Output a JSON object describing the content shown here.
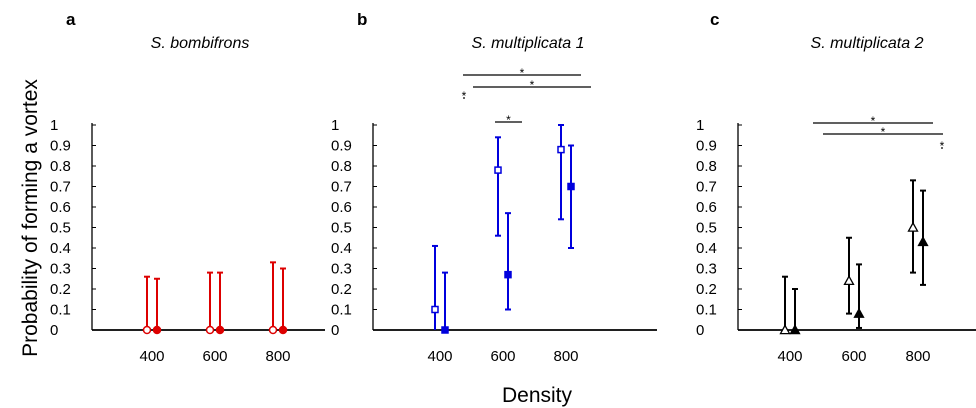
{
  "figure": {
    "ylabel": "Probability of forming a vortex",
    "xlabel": "Density"
  },
  "chart_data": [
    {
      "type": "scatter",
      "panel": "a",
      "title": "S. bombifrons",
      "color": "#dd0000",
      "marker": "circle",
      "ylim": [
        0,
        1
      ],
      "yticks": [
        "0",
        "0.1",
        "0.2",
        "0.3",
        "0.4",
        "0.5",
        "0.6",
        "0.7",
        "0.8",
        "0.9",
        "1"
      ],
      "xticks": [
        "400",
        "600",
        "800"
      ],
      "points": [
        {
          "x": 400,
          "filled": false,
          "y": 0,
          "lo": 0,
          "hi": 0.26
        },
        {
          "x": 400,
          "filled": true,
          "y": 0,
          "lo": 0,
          "hi": 0.25
        },
        {
          "x": 600,
          "filled": false,
          "y": 0,
          "lo": 0,
          "hi": 0.28
        },
        {
          "x": 600,
          "filled": true,
          "y": 0,
          "lo": 0,
          "hi": 0.28
        },
        {
          "x": 800,
          "filled": false,
          "y": 0,
          "lo": 0,
          "hi": 0.33
        },
        {
          "x": 800,
          "filled": true,
          "y": 0,
          "lo": 0,
          "hi": 0.3
        }
      ],
      "significance": []
    },
    {
      "type": "scatter",
      "panel": "b",
      "title": "S. multiplicata 1",
      "color": "#0000dd",
      "marker": "square",
      "ylim": [
        0,
        1
      ],
      "yticks": [
        "0",
        "0.1",
        "0.2",
        "0.3",
        "0.4",
        "0.5",
        "0.6",
        "0.7",
        "0.8",
        "0.9",
        "1"
      ],
      "xticks": [
        "400",
        "600",
        "800"
      ],
      "points": [
        {
          "x": 400,
          "filled": false,
          "y": 0.1,
          "lo": 0,
          "hi": 0.41
        },
        {
          "x": 400,
          "filled": true,
          "y": 0,
          "lo": 0,
          "hi": 0.28
        },
        {
          "x": 600,
          "filled": false,
          "y": 0.78,
          "lo": 0.46,
          "hi": 0.94
        },
        {
          "x": 600,
          "filled": true,
          "y": 0.27,
          "lo": 0.1,
          "hi": 0.57
        },
        {
          "x": 800,
          "filled": false,
          "y": 0.88,
          "lo": 0.54,
          "hi": 1.0
        },
        {
          "x": 800,
          "filled": true,
          "y": 0.7,
          "lo": 0.4,
          "hi": 0.9
        }
      ],
      "significance": [
        {
          "from": 0,
          "to": 4,
          "label": "*"
        },
        {
          "from": 1,
          "to": 5,
          "label": "*"
        },
        {
          "from": 0,
          "to": 1,
          "label": "*"
        },
        {
          "from": 2,
          "to": 3,
          "label": "*"
        }
      ]
    },
    {
      "type": "scatter",
      "panel": "c",
      "title": "S. multiplicata 2",
      "color": "#000000",
      "marker": "triangle",
      "ylim": [
        0,
        1
      ],
      "yticks": [
        "0",
        "0.1",
        "0.2",
        "0.3",
        "0.4",
        "0.5",
        "0.6",
        "0.7",
        "0.8",
        "0.9",
        "1"
      ],
      "xticks": [
        "400",
        "600",
        "800"
      ],
      "points": [
        {
          "x": 400,
          "filled": false,
          "y": 0,
          "lo": 0,
          "hi": 0.26
        },
        {
          "x": 400,
          "filled": true,
          "y": 0,
          "lo": 0,
          "hi": 0.2
        },
        {
          "x": 600,
          "filled": false,
          "y": 0.24,
          "lo": 0.08,
          "hi": 0.45
        },
        {
          "x": 600,
          "filled": true,
          "y": 0.08,
          "lo": 0.01,
          "hi": 0.32
        },
        {
          "x": 800,
          "filled": false,
          "y": 0.5,
          "lo": 0.28,
          "hi": 0.73
        },
        {
          "x": 800,
          "filled": true,
          "y": 0.43,
          "lo": 0.22,
          "hi": 0.68
        }
      ],
      "significance": [
        {
          "from": 0,
          "to": 4,
          "label": "*"
        },
        {
          "from": 1,
          "to": 5,
          "label": "*"
        },
        {
          "from": 4,
          "to": 5,
          "label": "*"
        }
      ]
    }
  ]
}
